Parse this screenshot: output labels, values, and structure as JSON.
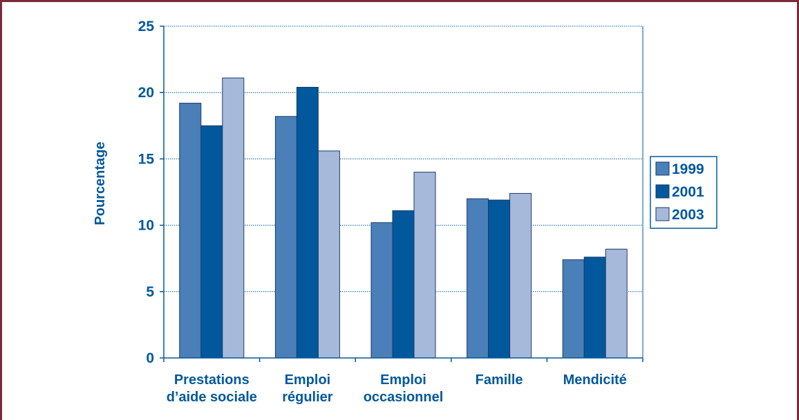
{
  "chart_data": {
    "type": "bar",
    "ylabel": "Pourcentage",
    "xlabel": "",
    "ylim": [
      0,
      25
    ],
    "yticks": [
      0,
      5,
      10,
      15,
      20,
      25
    ],
    "categories": [
      [
        "Prestations",
        "d’aide sociale"
      ],
      [
        "Emploi",
        "régulier"
      ],
      [
        "Emploi",
        "occasionnel"
      ],
      [
        "Famille"
      ],
      [
        "Mendicité"
      ]
    ],
    "series": [
      {
        "name": "1999",
        "color": "#4a7fb8",
        "values": [
          19.2,
          18.2,
          10.2,
          12.0,
          7.4
        ]
      },
      {
        "name": "2001",
        "color": "#02589c",
        "values": [
          17.5,
          20.4,
          11.1,
          11.9,
          7.6
        ]
      },
      {
        "name": "2003",
        "color": "#a6b9da",
        "values": [
          21.1,
          15.6,
          14.0,
          12.4,
          8.2
        ]
      }
    ],
    "legend_position": "right",
    "grid": "horizontal-dotted",
    "text_color": "#02589c",
    "axis_color": "#02589c",
    "frame_color": "#7a2a3a"
  }
}
